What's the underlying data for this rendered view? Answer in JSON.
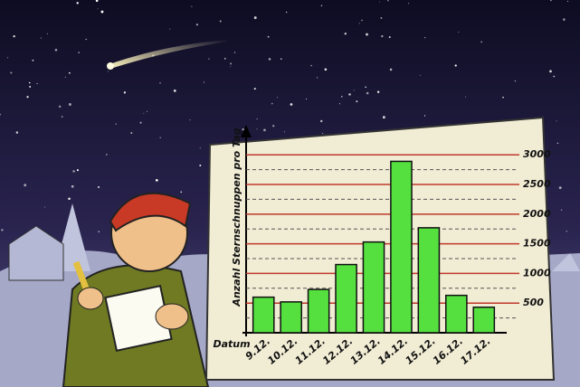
{
  "chart_data": {
    "type": "bar",
    "y_label": "Anzahl Sternschnuppen pro Tag",
    "x_label": "Datum",
    "categories": [
      "9.12.",
      "10.12.",
      "11.12.",
      "12.12.",
      "13.12.",
      "14.12.",
      "15.12.",
      "16.12.",
      "17.12."
    ],
    "values": [
      600,
      520,
      730,
      1150,
      1530,
      2890,
      1770,
      630,
      430
    ],
    "color": "#55e040",
    "ylim": [
      0,
      3400
    ],
    "yticks": [
      500,
      1000,
      1500,
      2000,
      2500,
      3000
    ],
    "minor_yticks": [
      250,
      750,
      1250,
      1750,
      2250,
      2750
    ],
    "grid": true
  }
}
